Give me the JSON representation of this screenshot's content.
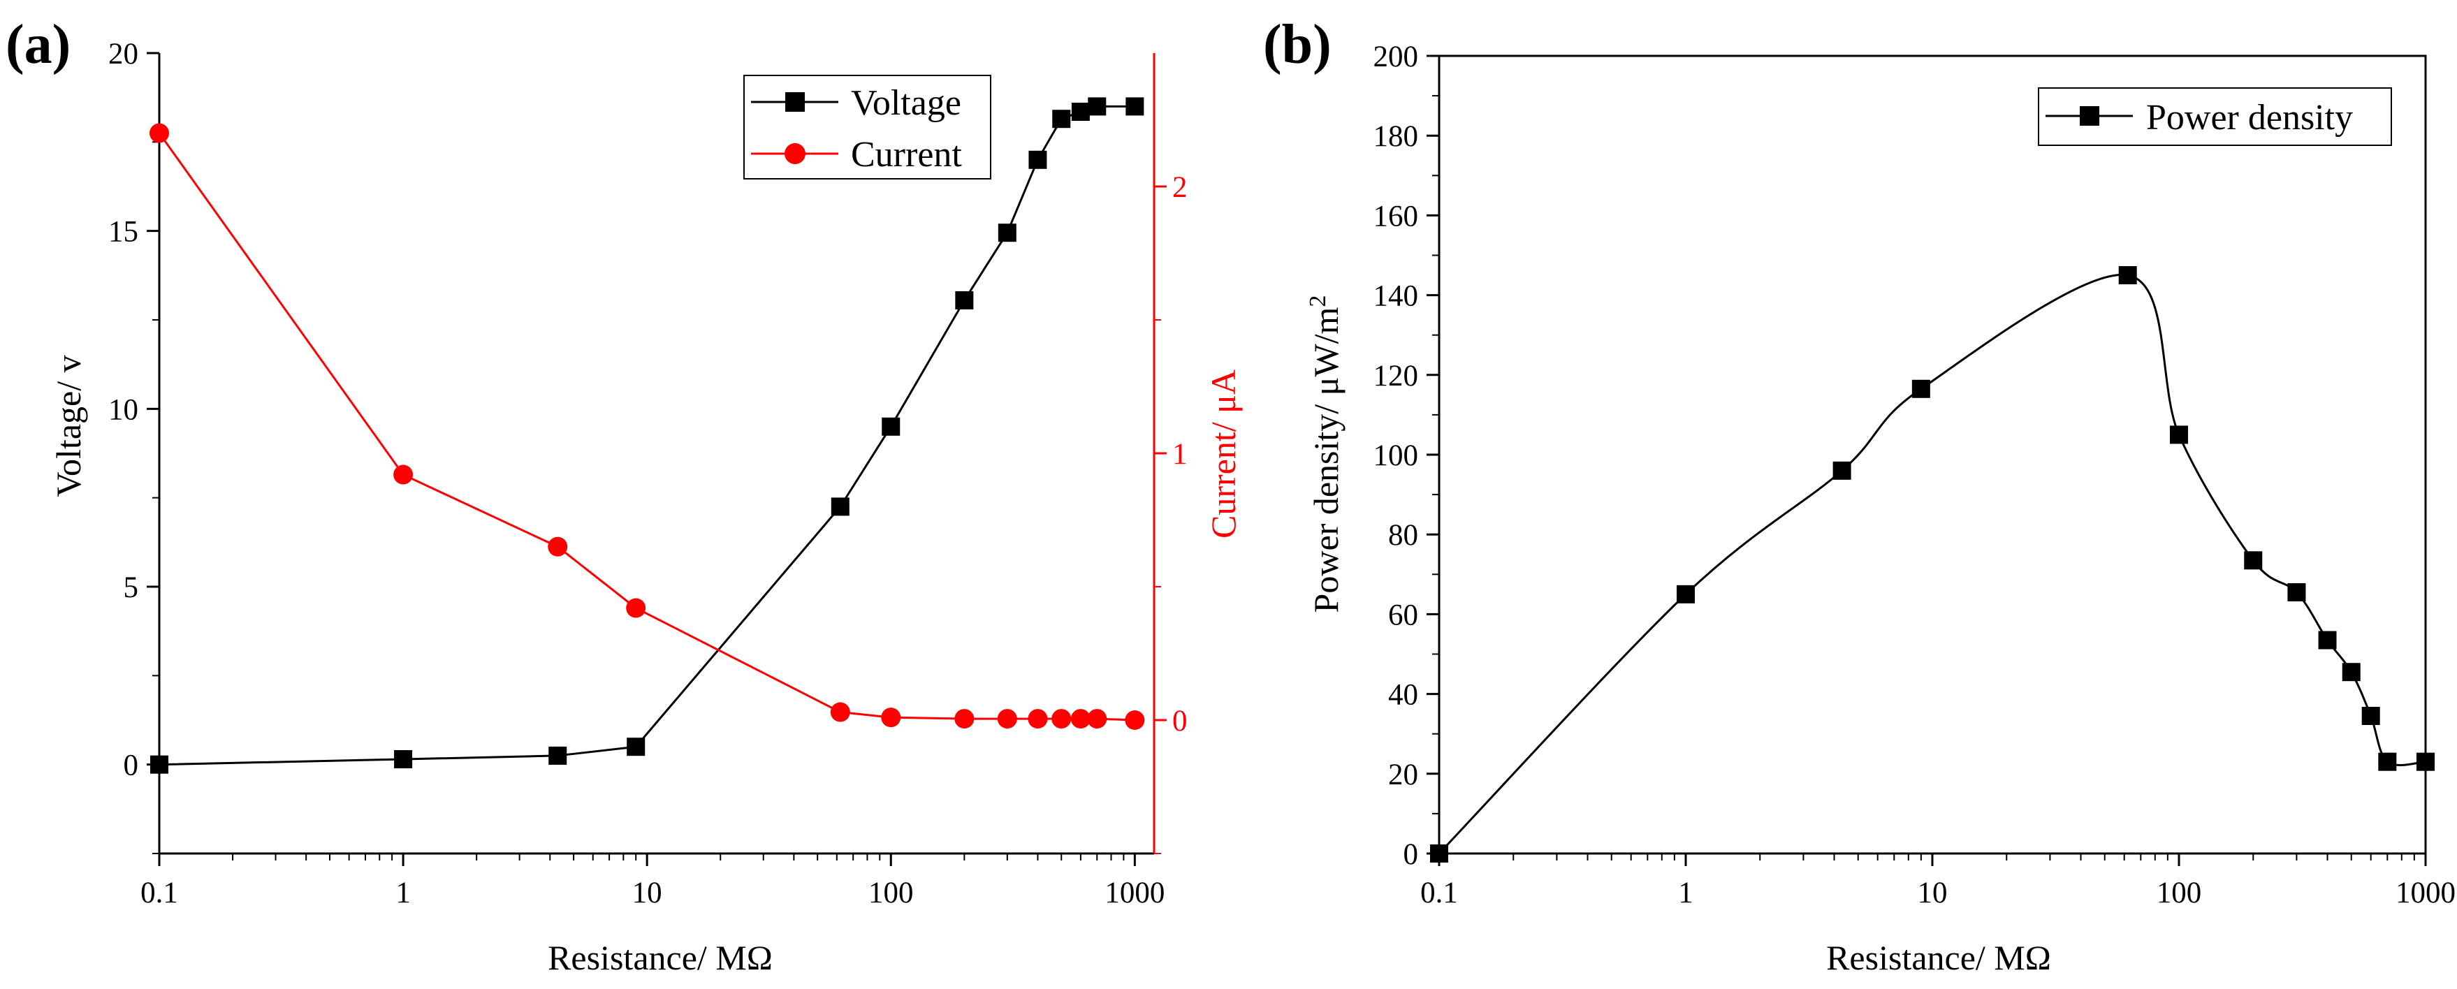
{
  "chart_data": [
    {
      "panel_label": "(a)",
      "type": "line",
      "x_scale": "log",
      "xlim": [
        0.1,
        1200
      ],
      "x_ticks": [
        0.1,
        1,
        10,
        100,
        1000
      ],
      "x_tick_labels": [
        "0.1",
        "1",
        "10",
        "100",
        "1000"
      ],
      "xlabel": "Resistance/ MΩ",
      "ylabel": "Voltage/ v",
      "ylim": [
        -2.5,
        20
      ],
      "y_ticks": [
        0,
        5,
        10,
        15,
        20
      ],
      "y_tick_labels": [
        "0",
        "5",
        "10",
        "15",
        "20"
      ],
      "y2label": "Current/ μA",
      "y2lim": [
        -0.5,
        2.5
      ],
      "y2_ticks": [
        0,
        1,
        2
      ],
      "y2_tick_labels": [
        "0",
        "1",
        "2"
      ],
      "legend_position": "top-right",
      "series": [
        {
          "name": "Voltage",
          "axis": "left",
          "color": "#000000",
          "marker": "square",
          "x": [
            0.1,
            1,
            4.3,
            9,
            62,
            100,
            200,
            300,
            400,
            500,
            600,
            700,
            1000
          ],
          "y": [
            0.0,
            0.15,
            0.25,
            0.5,
            7.25,
            9.5,
            13.05,
            14.95,
            17.0,
            18.15,
            18.35,
            18.5,
            18.5
          ]
        },
        {
          "name": "Current",
          "axis": "right",
          "color": "#ff0000",
          "marker": "circle",
          "x": [
            0.1,
            1,
            4.3,
            9,
            62,
            100,
            200,
            300,
            400,
            500,
            600,
            700,
            1000
          ],
          "y": [
            2.2,
            0.92,
            0.65,
            0.42,
            0.03,
            0.01,
            0.005,
            0.005,
            0.005,
            0.005,
            0.005,
            0.005,
            0.0
          ]
        }
      ]
    },
    {
      "panel_label": "(b)",
      "type": "line",
      "x_scale": "log",
      "xlim": [
        0.1,
        1000
      ],
      "x_ticks": [
        0.1,
        1,
        10,
        100,
        1000
      ],
      "x_tick_labels": [
        "0.1",
        "1",
        "10",
        "100",
        "1000"
      ],
      "xlabel": "Resistance/ MΩ",
      "ylabel": "Power density/ μW/m",
      "ylabel_superscript": "2",
      "ylim": [
        0,
        200
      ],
      "y_ticks": [
        0,
        20,
        40,
        60,
        80,
        100,
        120,
        140,
        160,
        180,
        200
      ],
      "y_tick_labels": [
        "0",
        "20",
        "40",
        "60",
        "80",
        "100",
        "120",
        "140",
        "160",
        "180",
        "200"
      ],
      "legend_position": "top-right",
      "series": [
        {
          "name": "Power density",
          "color": "#000000",
          "marker": "square",
          "x": [
            0.1,
            1,
            4.3,
            9,
            62,
            100,
            200,
            300,
            400,
            500,
            600,
            700,
            1000
          ],
          "y": [
            0,
            65,
            96,
            116.5,
            145,
            105,
            73.5,
            65.5,
            53.5,
            45.5,
            34.5,
            23,
            23
          ]
        }
      ]
    }
  ]
}
